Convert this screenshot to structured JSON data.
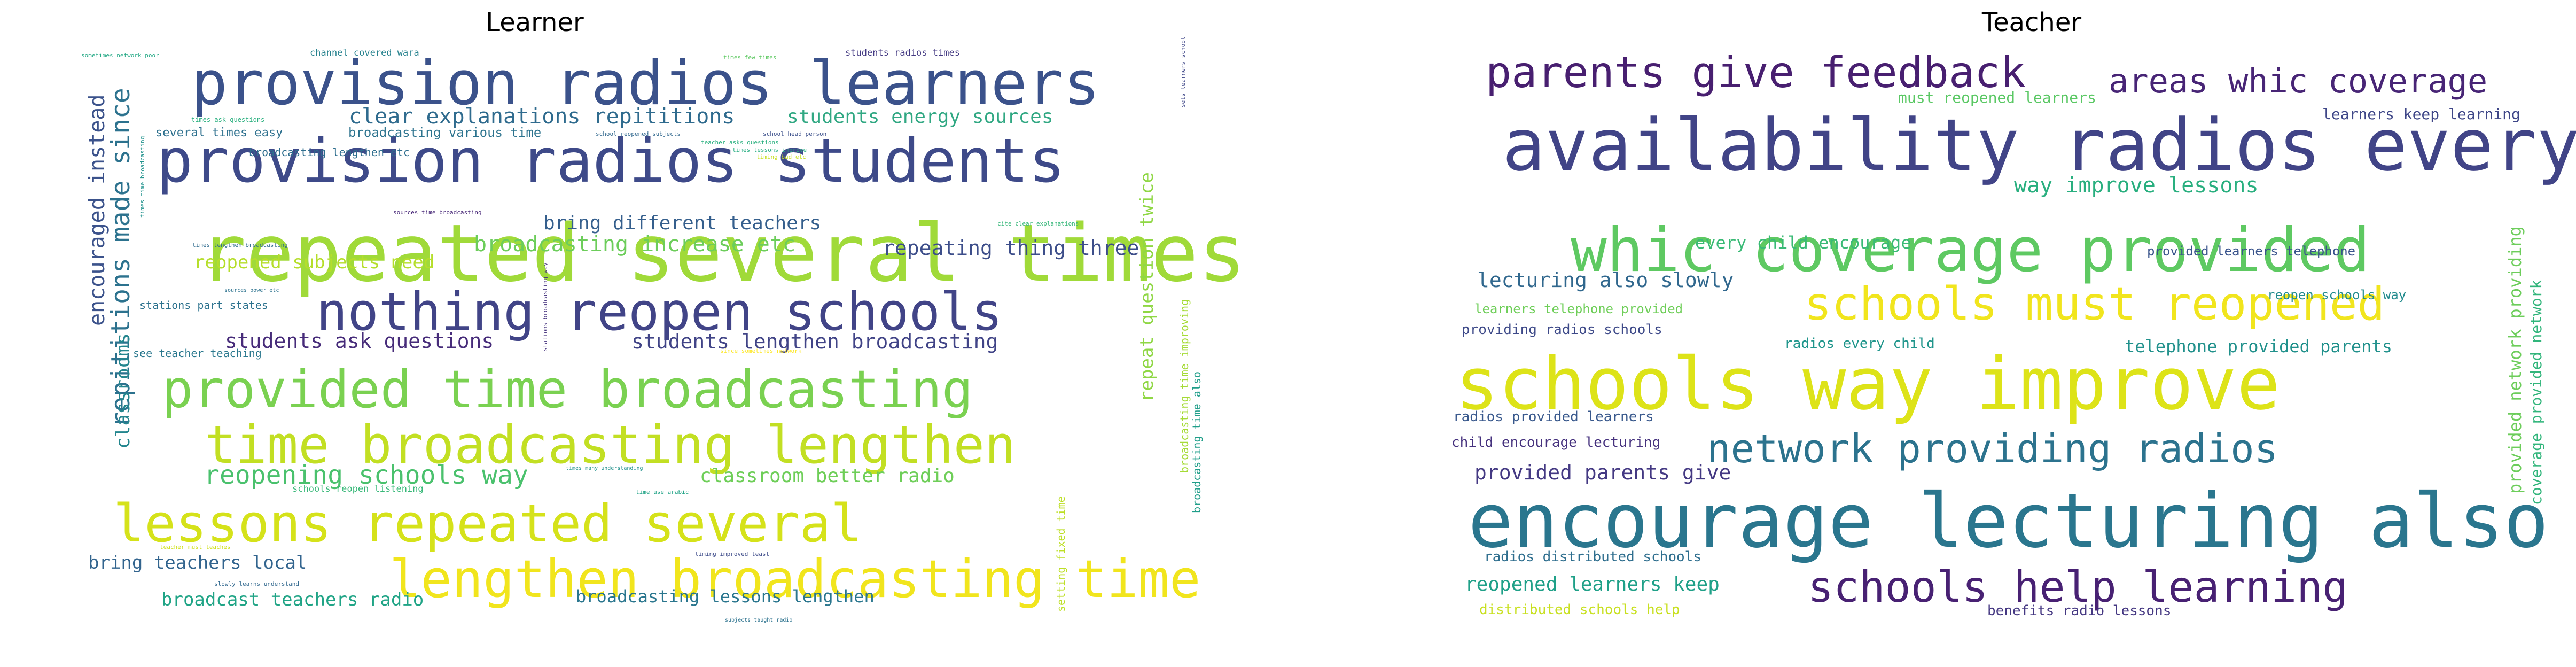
{
  "chart_data": [
    {
      "type": "wordcloud",
      "title": "Learner",
      "phrases": [
        {
          "text": "provision radios learners",
          "color": "#3b528b"
        },
        {
          "text": "provision radios students",
          "color": "#3e4a89"
        },
        {
          "text": "repeated several times",
          "color": "#a0da39"
        },
        {
          "text": "nothing reopen schools",
          "color": "#414487"
        },
        {
          "text": "provided time broadcasting",
          "color": "#7ad151"
        },
        {
          "text": "time broadcasting lengthen",
          "color": "#c2df23"
        },
        {
          "text": "lessons repeated several",
          "color": "#d5e21a"
        },
        {
          "text": "lengthen broadcasting time",
          "color": "#f1e51d"
        },
        {
          "text": "clear explanations repititions",
          "color": "#2f6b8e"
        },
        {
          "text": "students energy sources",
          "color": "#31a883"
        },
        {
          "text": "broadcasting increase etc",
          "color": "#6ccd5a"
        },
        {
          "text": "repeating thing three",
          "color": "#3d4e8a"
        },
        {
          "text": "bring different teachers",
          "color": "#355f8d"
        },
        {
          "text": "students ask questions",
          "color": "#472c7a"
        },
        {
          "text": "students lengthen broadcasting",
          "color": "#414487"
        },
        {
          "text": "reopened subjects need",
          "color": "#b5de2b"
        },
        {
          "text": "reopening schools way",
          "color": "#4ac16d"
        },
        {
          "text": "classroom better radio",
          "color": "#6ece58"
        },
        {
          "text": "bring teachers local",
          "color": "#32648e"
        },
        {
          "text": "broadcast teachers radio",
          "color": "#20a486"
        },
        {
          "text": "broadcasting lessons lengthen",
          "color": "#2a768e"
        },
        {
          "text": "repititions made since",
          "color": "#2c728e"
        },
        {
          "text": "encouraged instead",
          "color": "#3b528b"
        },
        {
          "text": "classrooms",
          "color": "#24868e"
        },
        {
          "text": "repeat question twice",
          "color": "#8fd744"
        },
        {
          "text": "setting fixed time",
          "color": "#bddf26"
        },
        {
          "text": "broadcasting time improving",
          "color": "#a5db36"
        },
        {
          "text": "broadcasting time also",
          "color": "#1f9e89"
        },
        {
          "text": "channel covered wara",
          "color": "#26828e"
        },
        {
          "text": "students radios times",
          "color": "#443a83"
        },
        {
          "text": "several times easy",
          "color": "#2d708e"
        },
        {
          "text": "broadcasting various time",
          "color": "#2c738e"
        },
        {
          "text": "broadcasting lengthen etc",
          "color": "#2e6e8e"
        },
        {
          "text": "stations part states",
          "color": "#2c728e"
        },
        {
          "text": "see teacher teaching",
          "color": "#2a788e"
        },
        {
          "text": "schools reopen listening",
          "color": "#37b878"
        },
        {
          "text": "sometimes network poor",
          "color": "#22a884"
        },
        {
          "text": "times ask questions",
          "color": "#2ab07f"
        },
        {
          "text": "sources time broadcasting",
          "color": "#482878"
        },
        {
          "text": "times lengthen broadcasting",
          "color": "#2f6c8e"
        },
        {
          "text": "school reopened subjects",
          "color": "#31688e"
        },
        {
          "text": "school head person",
          "color": "#3c508b"
        },
        {
          "text": "sources power etc",
          "color": "#2c728e"
        },
        {
          "text": "times many understanding",
          "color": "#21918c"
        },
        {
          "text": "time use arabic",
          "color": "#20a386"
        },
        {
          "text": "teacher must teaches",
          "color": "#d0e11c"
        },
        {
          "text": "slowly learns understand",
          "color": "#31688e"
        },
        {
          "text": "timing improved least",
          "color": "#3e4c8a"
        },
        {
          "text": "subjects taught radio",
          "color": "#2c728e"
        },
        {
          "text": "cite clear explanations",
          "color": "#35b779"
        },
        {
          "text": "times lessons improve",
          "color": "#26ad81"
        },
        {
          "text": "teacher asks questions",
          "color": "#2ab07f"
        },
        {
          "text": "times time broadcasting",
          "color": "#20928c"
        },
        {
          "text": "since sometimes network",
          "color": "#fde725"
        },
        {
          "text": "stations broadcasting way",
          "color": "#46337e"
        },
        {
          "text": "times few times",
          "color": "#5ec962"
        },
        {
          "text": "timing bad etc",
          "color": "#c8e020"
        },
        {
          "text": "sets learners school",
          "color": "#3f4788"
        }
      ]
    },
    {
      "type": "wordcloud",
      "title": "Teacher",
      "phrases": [
        {
          "text": "parents give feedback",
          "color": "#481f70"
        },
        {
          "text": "areas whic coverage",
          "color": "#482576"
        },
        {
          "text": "availability radios every",
          "color": "#414487"
        },
        {
          "text": "whic coverage provided",
          "color": "#5ec962"
        },
        {
          "text": "schools must reopened",
          "color": "#f1e51d"
        },
        {
          "text": "schools way improve",
          "color": "#dde318"
        },
        {
          "text": "network providing radios",
          "color": "#2c738e"
        },
        {
          "text": "encourage lecturing also",
          "color": "#2a768e"
        },
        {
          "text": "schools help learning",
          "color": "#482173"
        },
        {
          "text": "way improve lessons",
          "color": "#29af7f"
        },
        {
          "text": "every child encourage",
          "color": "#3aba76"
        },
        {
          "text": "lecturing also slowly",
          "color": "#31688e"
        },
        {
          "text": "provided parents give",
          "color": "#443983"
        },
        {
          "text": "reopened learners keep",
          "color": "#1fa088"
        },
        {
          "text": "must reopened learners",
          "color": "#5ac864"
        },
        {
          "text": "learners keep learning",
          "color": "#3f4788"
        },
        {
          "text": "provided learners telephone",
          "color": "#3a548c"
        },
        {
          "text": "reopen schools way",
          "color": "#228b8d"
        },
        {
          "text": "learners telephone provided",
          "color": "#6ece58"
        },
        {
          "text": "providing radios schools",
          "color": "#3e4a89"
        },
        {
          "text": "radios every child",
          "color": "#1f958b"
        },
        {
          "text": "telephone provided parents",
          "color": "#21918c"
        },
        {
          "text": "radios provided learners",
          "color": "#38588c"
        },
        {
          "text": "child encourage lecturing",
          "color": "#46327e"
        },
        {
          "text": "radios distributed schools",
          "color": "#2e6e8e"
        },
        {
          "text": "distributed schools help",
          "color": "#c8e020"
        },
        {
          "text": "benefits radio lessons",
          "color": "#453882"
        },
        {
          "text": "provided network providing",
          "color": "#6ccd5a"
        },
        {
          "text": "coverage provided network",
          "color": "#31b57b"
        }
      ]
    }
  ]
}
